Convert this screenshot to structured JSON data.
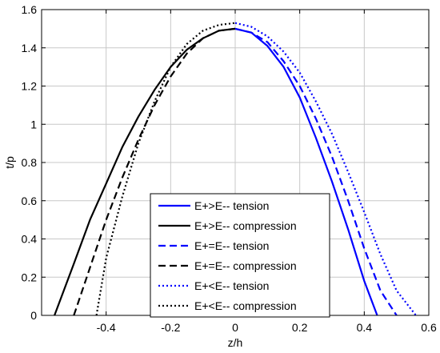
{
  "chart_data": {
    "type": "line",
    "xlabel": "z/h",
    "ylabel": "t/p",
    "xlim": [
      -0.6,
      0.6
    ],
    "ylim": [
      0,
      1.6
    ],
    "xticks": [
      -0.4,
      -0.2,
      0,
      0.2,
      0.4,
      0.6
    ],
    "xtick_labels": [
      "-0.4",
      "-0.2",
      "0",
      "0.2",
      "0.4",
      "0.6"
    ],
    "yticks": [
      0,
      0.2,
      0.4,
      0.6,
      0.8,
      1,
      1.2,
      1.4,
      1.6
    ],
    "ytick_labels": [
      "0",
      "0.2",
      "0.4",
      "0.6",
      "0.8",
      "1",
      "1.2",
      "1.4",
      "1.6"
    ],
    "grid": true,
    "legend_position": "bottom-center",
    "series": [
      {
        "name": "E+>E-- tension",
        "color": "#0000ff",
        "style": "solid",
        "x": [
          0,
          0.05,
          0.1,
          0.15,
          0.2,
          0.25,
          0.3,
          0.35,
          0.4,
          0.44
        ],
        "y": [
          1.5,
          1.48,
          1.41,
          1.3,
          1.14,
          0.93,
          0.7,
          0.45,
          0.18,
          0
        ]
      },
      {
        "name": "E+>E-- compression",
        "color": "#000000",
        "style": "solid",
        "x": [
          -0.56,
          -0.5,
          -0.45,
          -0.4,
          -0.35,
          -0.3,
          -0.25,
          -0.2,
          -0.15,
          -0.1,
          -0.05,
          0
        ],
        "y": [
          0,
          0.27,
          0.5,
          0.69,
          0.88,
          1.04,
          1.18,
          1.3,
          1.39,
          1.45,
          1.49,
          1.5
        ]
      },
      {
        "name": "E+=E-- tension",
        "color": "#0000ff",
        "style": "dashed",
        "x": [
          0,
          0.05,
          0.1,
          0.15,
          0.2,
          0.25,
          0.3,
          0.35,
          0.4,
          0.45,
          0.5
        ],
        "y": [
          1.5,
          1.48,
          1.43,
          1.33,
          1.2,
          1.03,
          0.83,
          0.6,
          0.35,
          0.13,
          0
        ]
      },
      {
        "name": "E+=E-- compression",
        "color": "#000000",
        "style": "dashed",
        "x": [
          -0.5,
          -0.45,
          -0.4,
          -0.35,
          -0.3,
          -0.25,
          -0.2,
          -0.15,
          -0.1,
          -0.05,
          0
        ],
        "y": [
          0,
          0.25,
          0.5,
          0.72,
          0.92,
          1.1,
          1.25,
          1.37,
          1.45,
          1.49,
          1.5
        ]
      },
      {
        "name": "E+<E-- tension",
        "color": "#0000ff",
        "style": "dotted",
        "x": [
          0,
          0.05,
          0.1,
          0.15,
          0.2,
          0.25,
          0.3,
          0.35,
          0.4,
          0.45,
          0.5,
          0.56
        ],
        "y": [
          1.53,
          1.51,
          1.46,
          1.38,
          1.27,
          1.12,
          0.95,
          0.75,
          0.54,
          0.32,
          0.13,
          0
        ]
      },
      {
        "name": "E+<E-- compression",
        "color": "#000000",
        "style": "dotted",
        "x": [
          -0.43,
          -0.4,
          -0.35,
          -0.3,
          -0.25,
          -0.2,
          -0.15,
          -0.1,
          -0.05,
          0
        ],
        "y": [
          0,
          0.3,
          0.62,
          0.9,
          1.12,
          1.3,
          1.42,
          1.49,
          1.52,
          1.53
        ]
      }
    ]
  }
}
